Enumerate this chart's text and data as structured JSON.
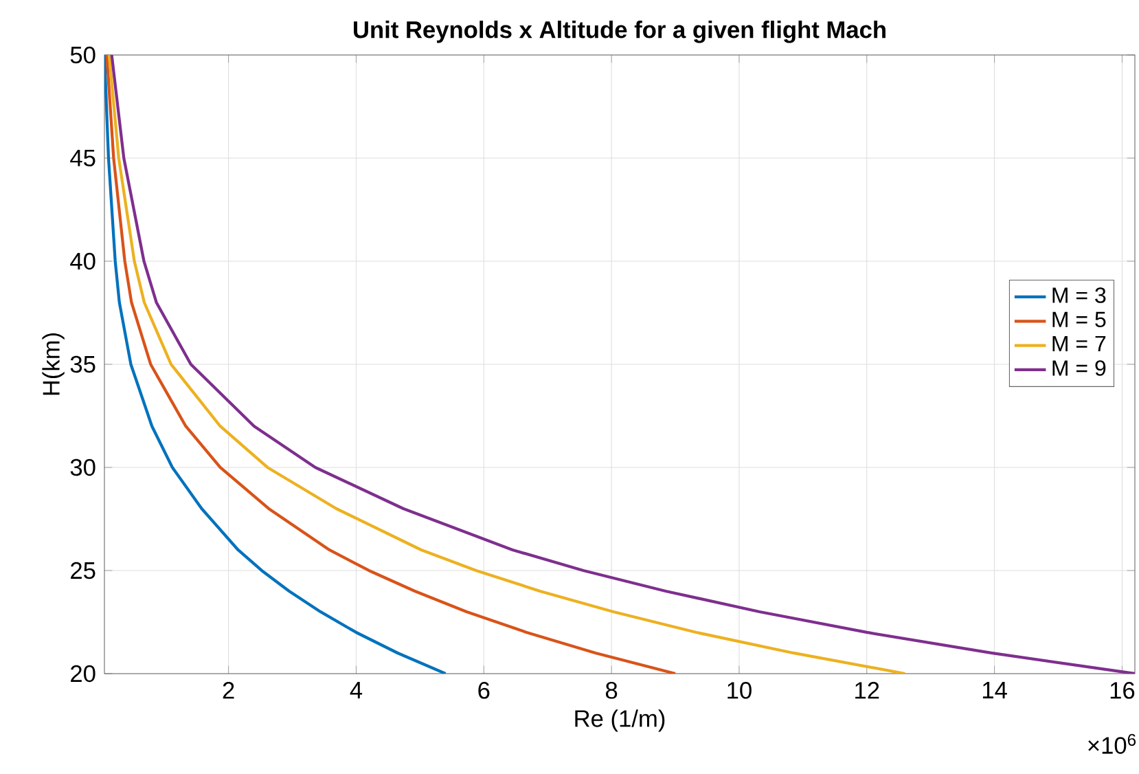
{
  "chart_data": {
    "type": "line",
    "title": "Unit Reynolds x Altitude for a given flight Mach",
    "xlabel": "Re (1/m)",
    "ylabel": "H(km)",
    "annotations": [
      "×10$^{6}$"
    ],
    "xlim": [
      0.056,
      16.2
    ],
    "ylim": [
      20,
      50
    ],
    "xticks": [
      2,
      4,
      6,
      8,
      10,
      12,
      14,
      16
    ],
    "yticks": [
      20,
      25,
      30,
      35,
      40,
      45,
      50
    ],
    "grid": true,
    "legend": "right",
    "line_style": "solid",
    "marker": "none",
    "series": [
      {
        "name": "M = 3",
        "color": "#0072bd",
        "x": [
          5.4,
          4.65,
          4.0,
          3.44,
          2.95,
          2.52,
          2.15,
          1.58,
          1.12,
          0.8,
          0.47,
          0.29,
          0.225,
          0.12,
          0.056
        ],
        "values": [
          20,
          21,
          22,
          23,
          24,
          25,
          26,
          28,
          30,
          32,
          35,
          38,
          40,
          45,
          50
        ]
      },
      {
        "name": "M = 5",
        "color": "#d95319",
        "x": [
          9.0,
          7.75,
          6.67,
          5.73,
          4.92,
          4.2,
          3.58,
          2.63,
          1.87,
          1.33,
          0.78,
          0.48,
          0.375,
          0.2,
          0.093
        ],
        "values": [
          20,
          21,
          22,
          23,
          24,
          25,
          26,
          28,
          30,
          32,
          35,
          38,
          40,
          45,
          50
        ]
      },
      {
        "name": "M = 7",
        "color": "#edb120",
        "x": [
          12.6,
          10.85,
          9.33,
          8.03,
          6.88,
          5.88,
          5.02,
          3.69,
          2.61,
          1.87,
          1.1,
          0.68,
          0.525,
          0.28,
          0.13
        ],
        "values": [
          20,
          21,
          22,
          23,
          24,
          25,
          26,
          28,
          30,
          32,
          35,
          38,
          40,
          45,
          50
        ]
      },
      {
        "name": "M = 9",
        "color": "#7e2f8e",
        "x": [
          16.2,
          13.95,
          12.0,
          10.32,
          8.85,
          7.56,
          6.45,
          4.74,
          3.36,
          2.4,
          1.41,
          0.87,
          0.675,
          0.36,
          0.17
        ],
        "values": [
          20,
          21,
          22,
          23,
          24,
          25,
          26,
          28,
          30,
          32,
          35,
          38,
          40,
          45,
          50
        ]
      }
    ]
  }
}
